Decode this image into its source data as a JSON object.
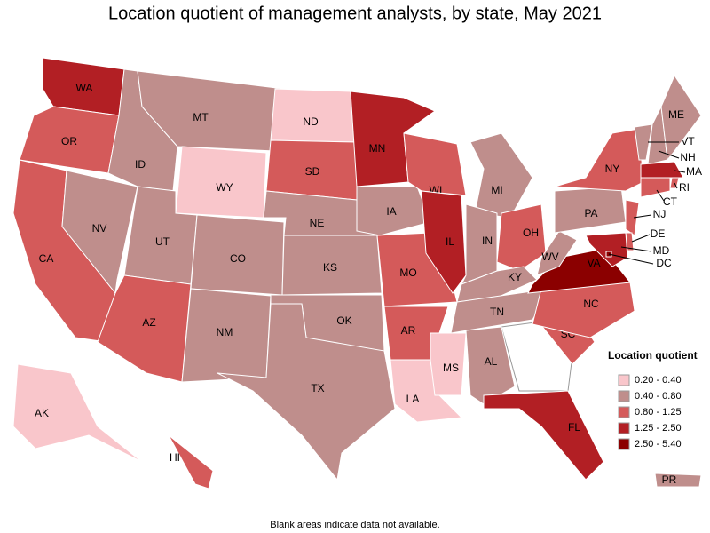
{
  "title": "Location quotient of management analysts, by state, May 2021",
  "note": "Blank areas indicate data not available.",
  "legend": {
    "title": "Location quotient",
    "bins": [
      {
        "label": "0.20 - 0.40",
        "color": "#f9c6cb"
      },
      {
        "label": "0.40 - 0.80",
        "color": "#bf8e8c"
      },
      {
        "label": "0.80 - 1.25",
        "color": "#d45a5a"
      },
      {
        "label": "1.25 - 2.50",
        "color": "#b21f24"
      },
      {
        "label": "2.50 - 5.40",
        "color": "#8b0000"
      }
    ]
  },
  "states": [
    {
      "label": "WA",
      "color": "#b21f24"
    },
    {
      "label": "OR",
      "color": "#d45a5a"
    },
    {
      "label": "CA",
      "color": "#d45a5a"
    },
    {
      "label": "NV",
      "color": "#bf8e8c"
    },
    {
      "label": "ID",
      "color": "#bf8e8c"
    },
    {
      "label": "MT",
      "color": "#bf8e8c"
    },
    {
      "label": "WY",
      "color": "#f9c6cb"
    },
    {
      "label": "UT",
      "color": "#bf8e8c"
    },
    {
      "label": "AZ",
      "color": "#d45a5a"
    },
    {
      "label": "CO",
      "color": "#bf8e8c"
    },
    {
      "label": "NM",
      "color": "#bf8e8c"
    },
    {
      "label": "ND",
      "color": "#f9c6cb"
    },
    {
      "label": "SD",
      "color": "#d45a5a"
    },
    {
      "label": "NE",
      "color": "#bf8e8c"
    },
    {
      "label": "KS",
      "color": "#bf8e8c"
    },
    {
      "label": "OK",
      "color": "#bf8e8c"
    },
    {
      "label": "TX",
      "color": "#bf8e8c"
    },
    {
      "label": "MN",
      "color": "#b21f24"
    },
    {
      "label": "IA",
      "color": "#bf8e8c"
    },
    {
      "label": "MO",
      "color": "#d45a5a"
    },
    {
      "label": "AR",
      "color": "#d45a5a"
    },
    {
      "label": "LA",
      "color": "#f9c6cb"
    },
    {
      "label": "WI",
      "color": "#d45a5a"
    },
    {
      "label": "IL",
      "color": "#b21f24"
    },
    {
      "label": "MI",
      "color": "#bf8e8c"
    },
    {
      "label": "IN",
      "color": "#bf8e8c"
    },
    {
      "label": "OH",
      "color": "#d45a5a"
    },
    {
      "label": "KY",
      "color": "#bf8e8c"
    },
    {
      "label": "TN",
      "color": "#bf8e8c"
    },
    {
      "label": "MS",
      "color": "#f9c6cb"
    },
    {
      "label": "AL",
      "color": "#bf8e8c"
    },
    {
      "label": "FL",
      "color": "#b21f24"
    },
    {
      "label": "SC",
      "color": "#d45a5a"
    },
    {
      "label": "NC",
      "color": "#d45a5a"
    },
    {
      "label": "VA",
      "color": "#8b0000"
    },
    {
      "label": "WV",
      "color": "#bf8e8c"
    },
    {
      "label": "PA",
      "color": "#bf8e8c"
    },
    {
      "label": "NY",
      "color": "#d45a5a"
    },
    {
      "label": "VT",
      "color": "#bf8e8c"
    },
    {
      "label": "NH",
      "color": "#bf8e8c"
    },
    {
      "label": "ME",
      "color": "#bf8e8c"
    },
    {
      "label": "MA",
      "color": "#b21f24"
    },
    {
      "label": "RI",
      "color": "#d45a5a"
    },
    {
      "label": "CT",
      "color": "#d45a5a"
    },
    {
      "label": "NJ",
      "color": "#d45a5a"
    },
    {
      "label": "DE",
      "color": "#d45a5a"
    },
    {
      "label": "MD",
      "color": "#b21f24"
    },
    {
      "label": "DC",
      "color": "#8b0000"
    },
    {
      "label": "AK",
      "color": "#f9c6cb"
    },
    {
      "label": "HI",
      "color": "#d45a5a"
    },
    {
      "label": "PR",
      "color": "#bf8e8c"
    }
  ]
}
